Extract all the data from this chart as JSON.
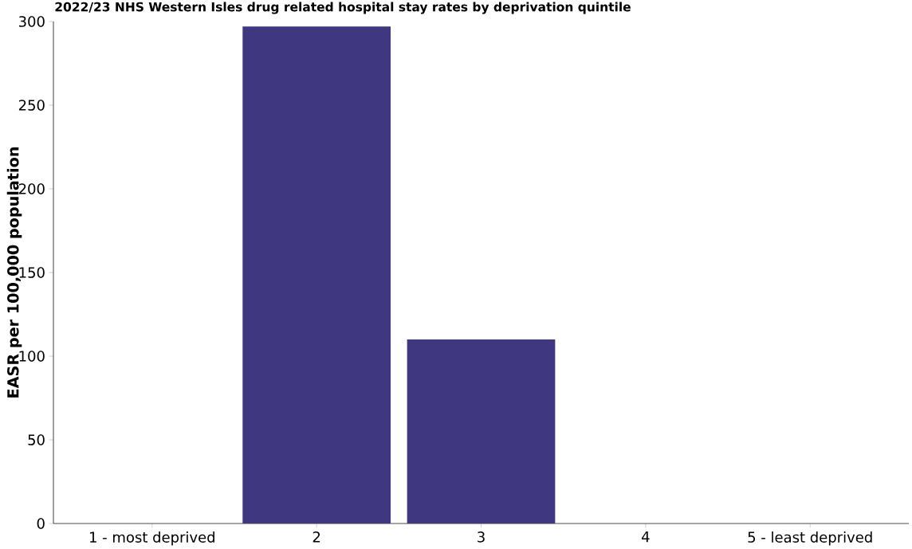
{
  "chart_data": {
    "type": "bar",
    "title": "2022/23 NHS Western Isles drug related hospital stay rates by deprivation quintile",
    "ylabel": "EASR per 100,000 population",
    "categories": [
      "1 - most deprived",
      "2",
      "3",
      "4",
      "5 - least deprived"
    ],
    "values": [
      0,
      297,
      110,
      0,
      0
    ],
    "color": "#3f3780",
    "ylim": [
      0,
      300
    ],
    "yticks": [
      0,
      50,
      100,
      150,
      200,
      250,
      300
    ]
  }
}
